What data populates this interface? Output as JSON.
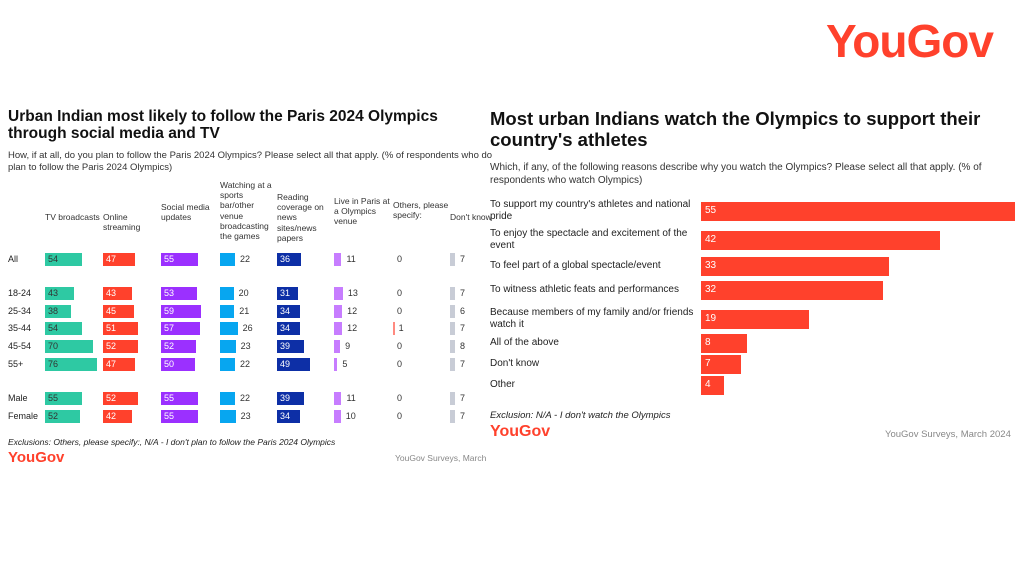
{
  "logo": "YouGov",
  "chart_data": [
    {
      "type": "table",
      "title": "Urban Indian most likely to follow the Paris 2024 Olympics through social media and TV",
      "subtitle": "How, if at all, do you plan to follow the Paris 2024 Olympics? Please select all that apply. (% of respondents who do plan to follow the Paris 2024 Olympics)",
      "columns": [
        "TV broadcasts",
        "Online streaming",
        "Social media updates",
        "Watching at a sports bar/other venue broadcasting the games",
        "Reading coverage on news sites/news papers",
        "Live in Paris at a Olympics venue",
        "Others, please specify:",
        "Don't know"
      ],
      "colors": [
        "#2ec9a3",
        "#ff412c",
        "#9b30ff",
        "#07a6f0",
        "#0d2fa6",
        "#c77dff",
        "#ff8a80",
        "#c8ccd6"
      ],
      "rows": [
        {
          "label": "All",
          "values": [
            54,
            47,
            55,
            22,
            36,
            11,
            0,
            7
          ]
        },
        {
          "label": "18-24",
          "values": [
            43,
            43,
            53,
            20,
            31,
            13,
            0,
            7
          ]
        },
        {
          "label": "25-34",
          "values": [
            38,
            45,
            59,
            21,
            34,
            12,
            0,
            6
          ]
        },
        {
          "label": "35-44",
          "values": [
            54,
            51,
            57,
            26,
            34,
            12,
            1,
            7
          ]
        },
        {
          "label": "45-54",
          "values": [
            70,
            52,
            52,
            23,
            39,
            9,
            0,
            8
          ]
        },
        {
          "label": "55+",
          "values": [
            76,
            47,
            50,
            22,
            49,
            5,
            0,
            7
          ]
        },
        {
          "label": "Male",
          "values": [
            55,
            52,
            55,
            22,
            39,
            11,
            0,
            7
          ]
        },
        {
          "label": "Female",
          "values": [
            52,
            42,
            55,
            23,
            34,
            10,
            0,
            7
          ]
        }
      ],
      "footnote": "Exclusions: Others, please specify:, N/A - I don't plan to follow the Paris 2024 Olympics",
      "source": "YouGov Surveys, March"
    },
    {
      "type": "bar",
      "orientation": "horizontal",
      "title": "Most urban Indians watch the Olympics to support their country's athletes",
      "subtitle": "Which, if any, of the following reasons describe why you watch the Olympics? Please select all that apply. (% of respondents who watch Olympics)",
      "categories": [
        "To support my country's athletes and national pride",
        "To enjoy the spectacle and excitement of the event",
        "To feel part of a global spectacle/event",
        "To witness athletic feats and performances",
        "Because members of my family and/or friends watch it",
        "All of the above",
        "Don't know",
        "Other"
      ],
      "values": [
        55,
        42,
        33,
        32,
        19,
        8,
        7,
        4
      ],
      "color": "#ff412c",
      "footnote": "Exclusion: N/A - I don't watch the Olympics",
      "source": "YouGov Surveys, March 2024"
    }
  ]
}
